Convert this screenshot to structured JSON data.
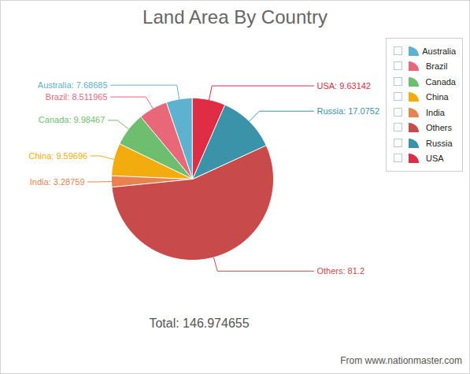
{
  "chart_data": {
    "type": "pie",
    "title": "Land Area By Country",
    "categories": [
      "Australia",
      "Brazil",
      "Canada",
      "China",
      "India",
      "Others",
      "Russia",
      "USA"
    ],
    "values": [
      7.68685,
      8.511965,
      9.98467,
      9.59696,
      3.28759,
      81.2,
      17.0752,
      9.63142
    ],
    "value_labels": [
      "Australia: 7.68685",
      "Brazil: 8.511965",
      "Canada: 9.98467",
      "China: 9.59696",
      "India: 3.28759",
      "Others: 81.2",
      "Russia: 17.0752",
      "USA: 9.63142"
    ],
    "colors": [
      "#5db3cf",
      "#e8687a",
      "#6dbe6e",
      "#f2ac0d",
      "#e8834f",
      "#c94a4a",
      "#3a93a9",
      "#de2d44"
    ],
    "data_labels": true,
    "legend": "top-right",
    "annotations": [
      "Total: 146.974655"
    ],
    "source": "From www.nationmaster.com"
  }
}
